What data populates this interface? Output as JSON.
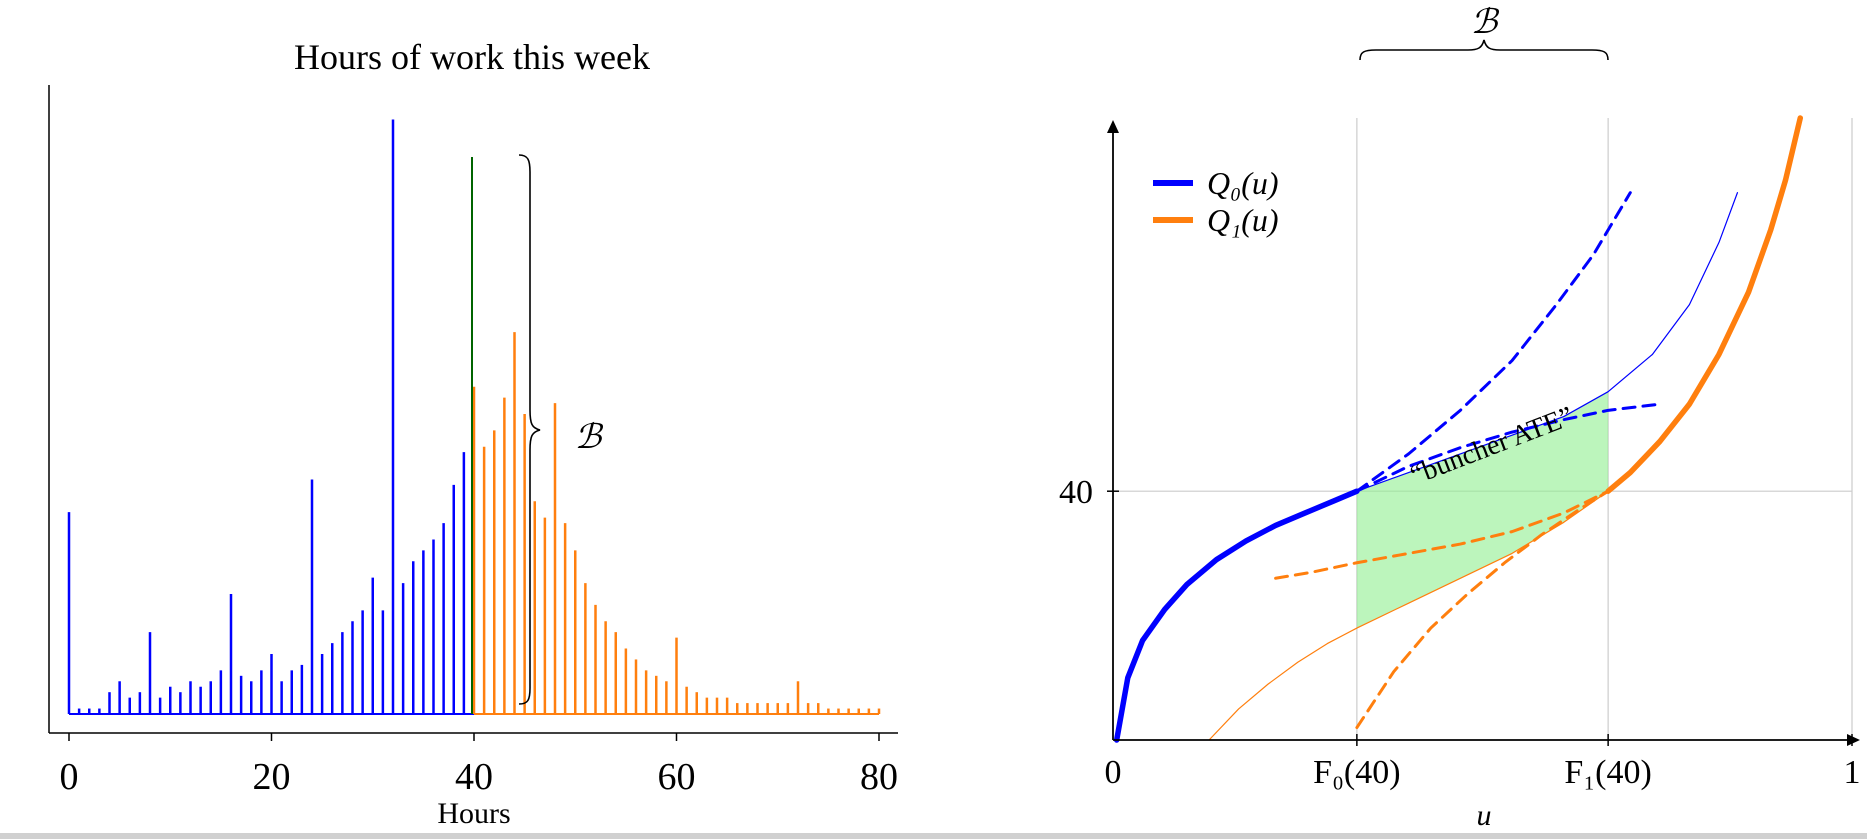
{
  "chart_data": [
    {
      "type": "bar",
      "title": "Hours of work this week",
      "xlabel": "Hours",
      "ylabel": "",
      "xlim": [
        0,
        80
      ],
      "x_ticks": [
        "0",
        "20",
        "40",
        "60",
        "80"
      ],
      "threshold_x": 40,
      "bracket_label": "ℬ",
      "colors": {
        "below": "#0000ff",
        "above": "#ff7f0e",
        "threshold": "#006400"
      },
      "series": [
        {
          "x": [
            0,
            1,
            2,
            3,
            4,
            5,
            6,
            7,
            8,
            9,
            10,
            11,
            12,
            13,
            14,
            15,
            16,
            17,
            18,
            19,
            20,
            21,
            22,
            23,
            24,
            25,
            26,
            27,
            28,
            29,
            30,
            31,
            32,
            33,
            34,
            35,
            36,
            37,
            38,
            39,
            40,
            41,
            42,
            43,
            44,
            45,
            46,
            47,
            48,
            49,
            50,
            51,
            52,
            53,
            54,
            55,
            56,
            57,
            58,
            59,
            60,
            61,
            62,
            63,
            64,
            65,
            66,
            67,
            68,
            69,
            70,
            71,
            72,
            73,
            74,
            75,
            76,
            77,
            78,
            79,
            80
          ],
          "values": [
            0.074,
            0.002,
            0.002,
            0.002,
            0.008,
            0.012,
            0.006,
            0.008,
            0.03,
            0.006,
            0.01,
            0.008,
            0.012,
            0.01,
            0.012,
            0.016,
            0.044,
            0.014,
            0.012,
            0.016,
            0.022,
            0.012,
            0.016,
            0.018,
            0.086,
            0.022,
            0.026,
            0.03,
            0.034,
            0.038,
            0.05,
            0.038,
            0.218,
            0.048,
            0.056,
            0.06,
            0.064,
            0.07,
            0.084,
            0.096,
            0.12,
            0.098,
            0.104,
            0.116,
            0.14,
            0.11,
            0.078,
            0.072,
            0.114,
            0.07,
            0.06,
            0.048,
            0.04,
            0.034,
            0.03,
            0.024,
            0.02,
            0.016,
            0.014,
            0.012,
            0.028,
            0.01,
            0.008,
            0.006,
            0.006,
            0.006,
            0.004,
            0.004,
            0.004,
            0.004,
            0.004,
            0.004,
            0.012,
            0.004,
            0.004,
            0.002,
            0.002,
            0.002,
            0.002,
            0.002,
            0.002
          ]
        }
      ]
    },
    {
      "type": "line",
      "xlabel": "u",
      "xlim": [
        0,
        1
      ],
      "ylim": [
        0,
        100
      ],
      "x_ticks": [
        "0",
        "F₀(40)",
        "F₁(40)",
        "1"
      ],
      "x_tick_positions": [
        0,
        0.33,
        0.67,
        1
      ],
      "y_ticks": [
        "40"
      ],
      "y_tick_positions": [
        40
      ],
      "bracket_label": "ℬ",
      "region_label": "“buncher ATE”",
      "legend_position": "top-left",
      "series": [
        {
          "name": "Q₀(u)",
          "color": "#0000ff",
          "u": [
            0.005,
            0.02,
            0.04,
            0.07,
            0.1,
            0.14,
            0.18,
            0.22,
            0.26,
            0.3,
            0.33
          ],
          "values": [
            0,
            10,
            16,
            21,
            25,
            29,
            32,
            34.5,
            36.5,
            38.5,
            40
          ]
        },
        {
          "name": "Q₁(u)",
          "color": "#ff7f0e",
          "u": [
            0.67,
            0.7,
            0.74,
            0.78,
            0.82,
            0.86,
            0.89,
            0.91,
            0.93
          ],
          "values": [
            40,
            43,
            48,
            54,
            62,
            72,
            82,
            90,
            100
          ]
        },
        {
          "role": "thin-Q0",
          "color": "#0000ff",
          "u": [
            0.33,
            0.4,
            0.47,
            0.54,
            0.61,
            0.67,
            0.73,
            0.78,
            0.82,
            0.845
          ],
          "values": [
            40,
            43,
            46,
            49,
            52,
            56,
            62,
            70,
            80,
            88
          ]
        },
        {
          "role": "thin-Q1",
          "color": "#ff7f0e",
          "u": [
            0.13,
            0.17,
            0.21,
            0.25,
            0.29,
            0.33,
            0.4,
            0.47,
            0.54,
            0.61,
            0.67
          ],
          "values": [
            0,
            5,
            9,
            12.5,
            15.5,
            18,
            22,
            26,
            30,
            35,
            40
          ]
        },
        {
          "role": "dashed-Q0-upper",
          "color": "#0000ff",
          "u": [
            0.33,
            0.4,
            0.47,
            0.54,
            0.6,
            0.65,
            0.7
          ],
          "values": [
            40,
            46,
            53,
            61,
            70,
            78,
            88
          ]
        },
        {
          "role": "dashed-Q0-lower",
          "color": "#0000ff",
          "u": [
            0.33,
            0.4,
            0.47,
            0.54,
            0.61,
            0.67,
            0.74
          ],
          "values": [
            40,
            44,
            47,
            49.5,
            51.5,
            53,
            54
          ]
        },
        {
          "role": "dashed-Q1-upper",
          "color": "#ff7f0e",
          "u": [
            0.22,
            0.27,
            0.33,
            0.4,
            0.47,
            0.54,
            0.61,
            0.67
          ],
          "values": [
            26,
            27,
            28.5,
            30,
            31.5,
            33.5,
            36.5,
            40
          ]
        },
        {
          "role": "dashed-Q1-lower",
          "color": "#ff7f0e",
          "u": [
            0.33,
            0.38,
            0.43,
            0.48,
            0.53,
            0.58,
            0.63,
            0.67
          ],
          "values": [
            2,
            11,
            18,
            23.5,
            28.5,
            33,
            37,
            40
          ]
        }
      ]
    }
  ]
}
